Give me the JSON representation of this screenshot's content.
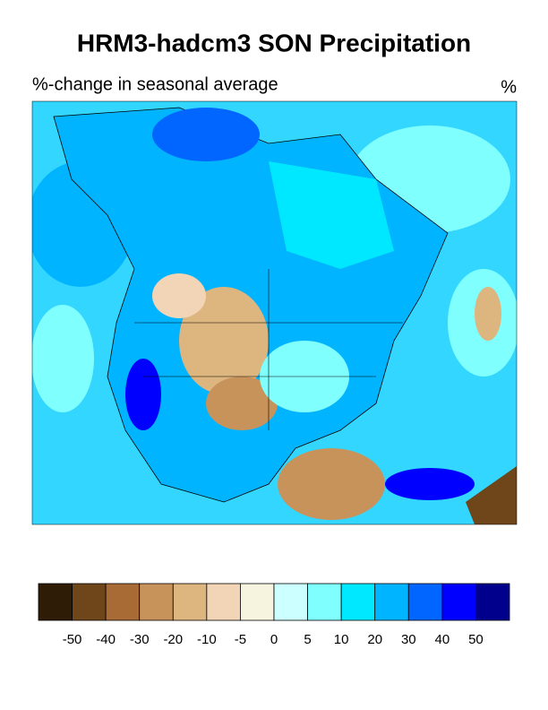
{
  "title": "HRM3-hadcm3 SON Precipitation",
  "subtitle": "%-change in seasonal average",
  "units": "%",
  "colorbar": {
    "levels": [
      -50,
      -40,
      -30,
      -20,
      -10,
      -5,
      0,
      5,
      10,
      20,
      30,
      40,
      50
    ],
    "colors": [
      "#2e1c06",
      "#6e461a",
      "#a96b36",
      "#c8935b",
      "#ddb57f",
      "#f2d4b6",
      "#f6f4de",
      "#ccffff",
      "#80ffff",
      "#00e8ff",
      "#00b4ff",
      "#0066ff",
      "#0000ff",
      "#00008c"
    ]
  }
}
